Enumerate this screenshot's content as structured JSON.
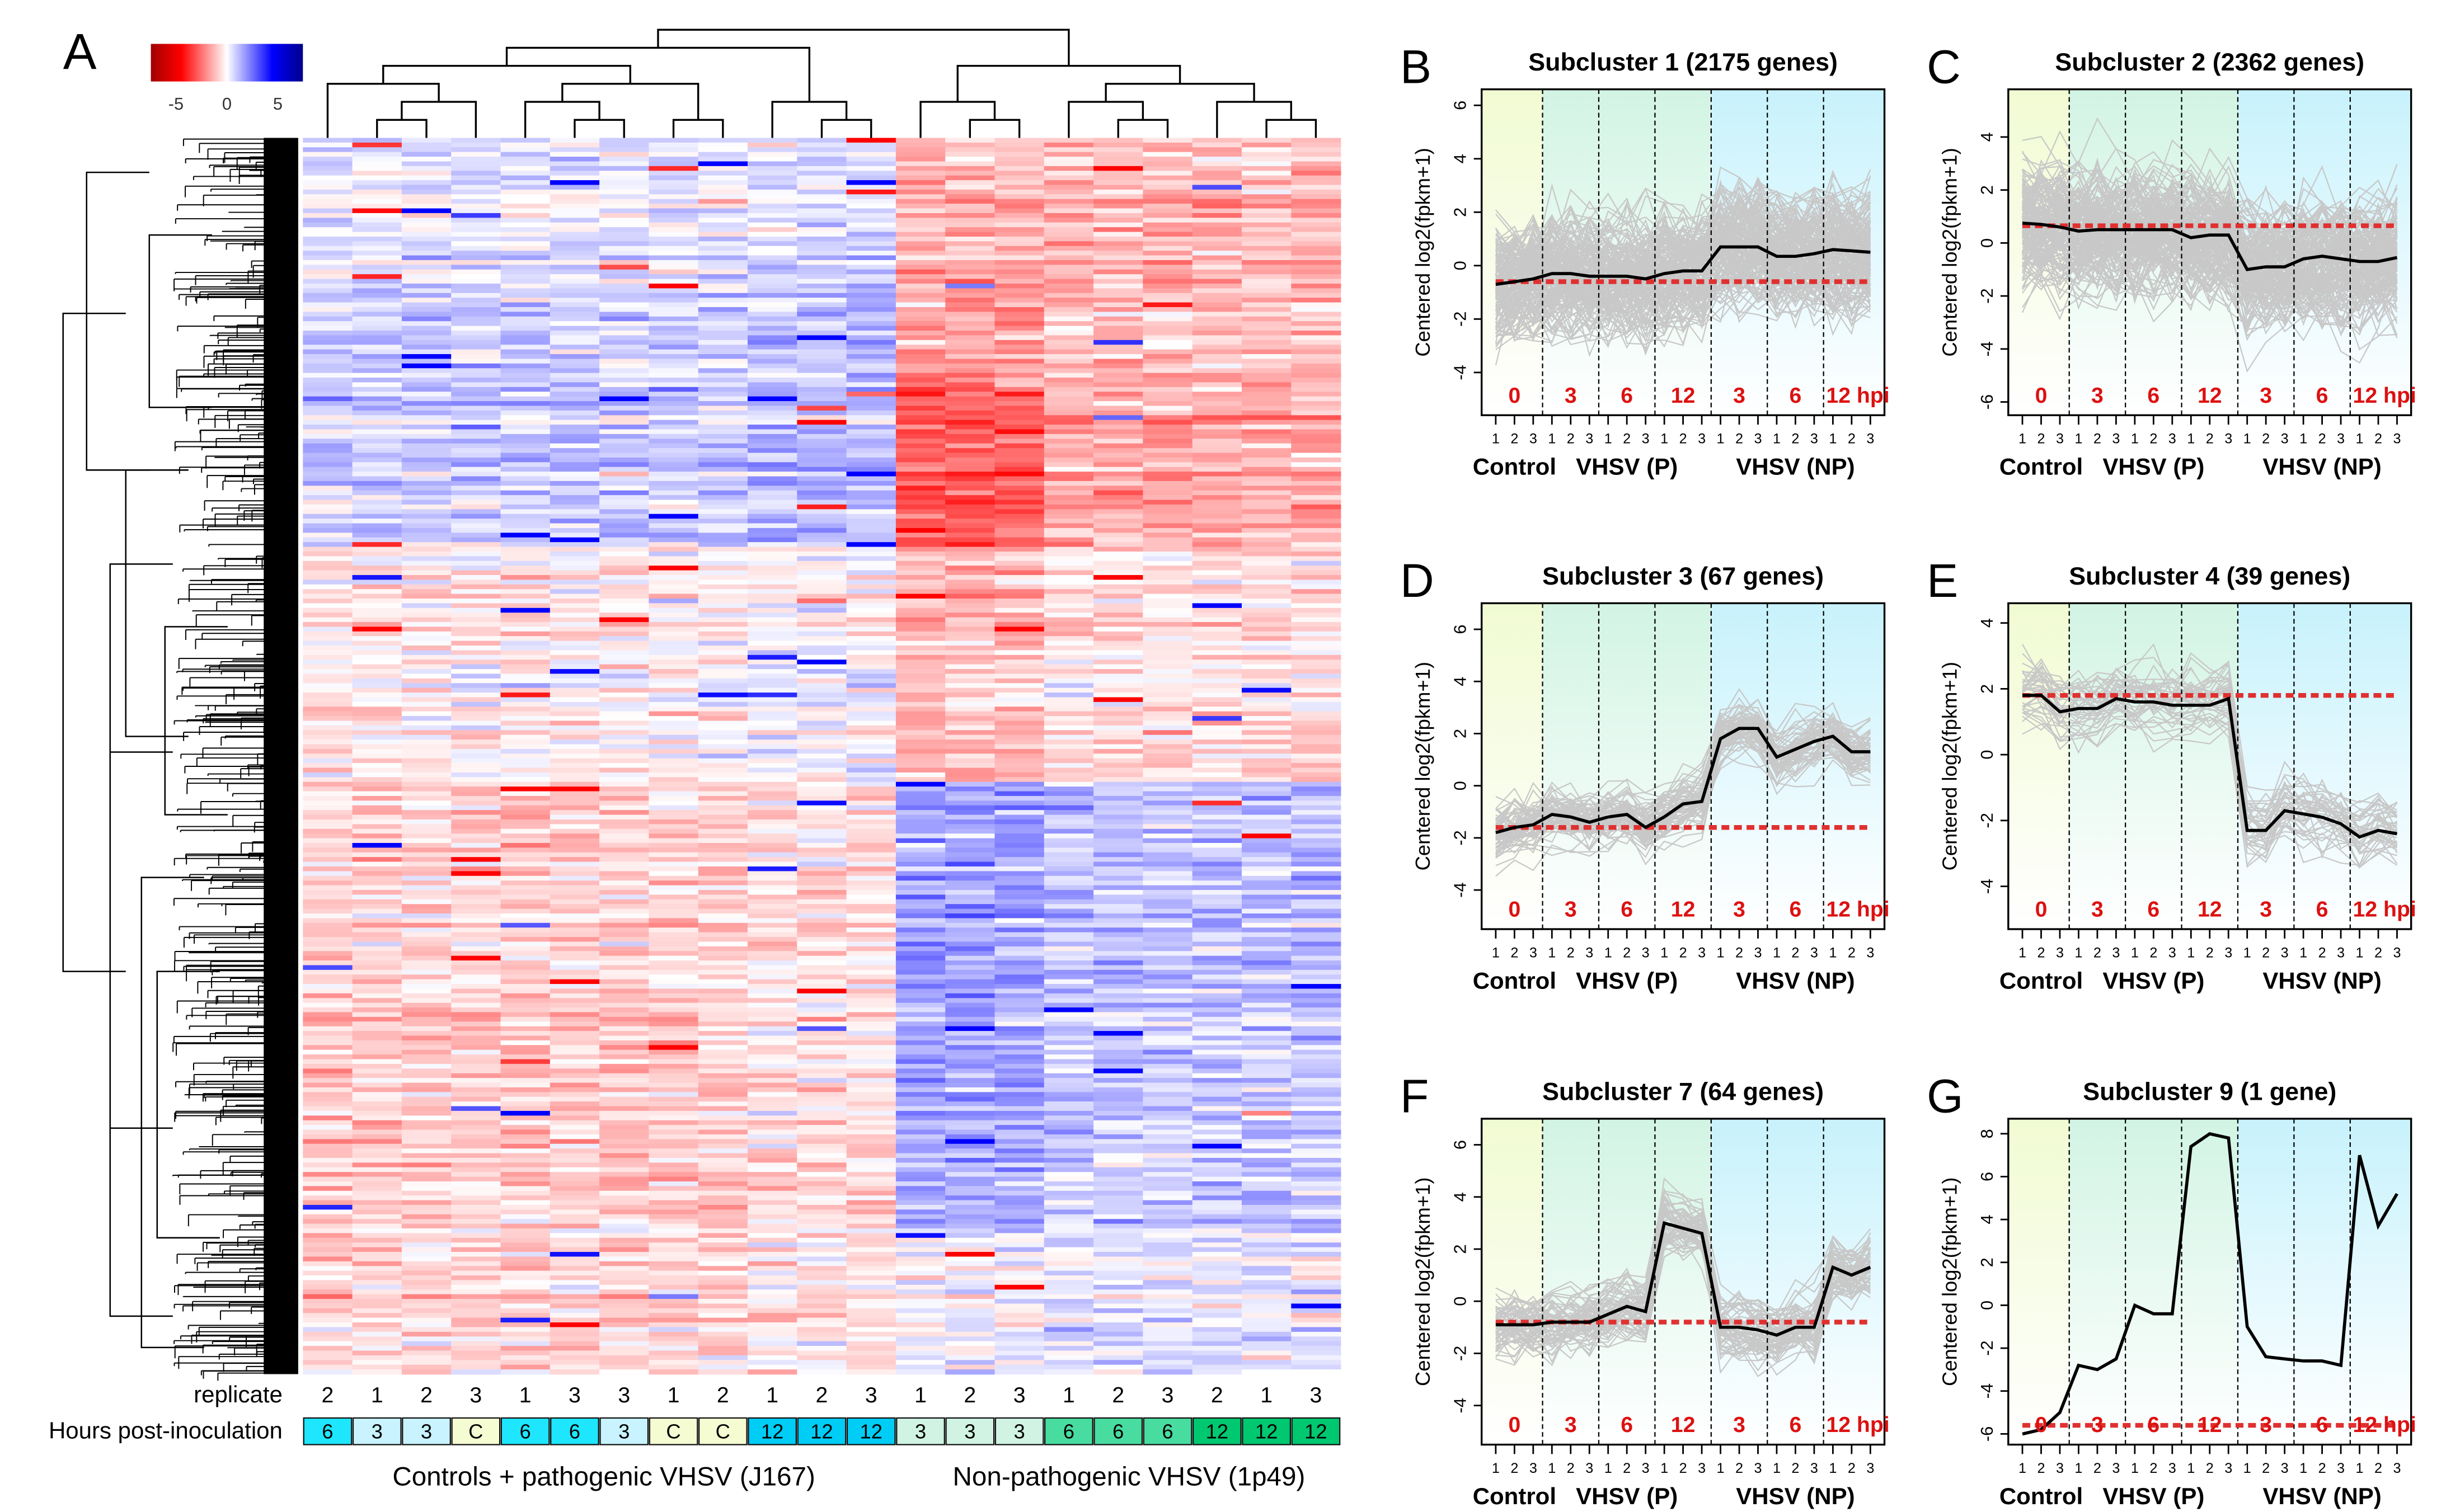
{
  "panel_letters": [
    "A",
    "B",
    "C",
    "D",
    "E",
    "F",
    "G"
  ],
  "chart_data": [
    {
      "type": "heatmap",
      "panel": "A",
      "color_scale": {
        "ticks": [
          "-5",
          "0",
          "5"
        ],
        "range": [
          -7,
          7
        ],
        "low_color": "#ff0000",
        "mid_color": "#ffffff",
        "high_color": "#0000ff"
      },
      "row_labels": {
        "replicate": "replicate",
        "hpi": "Hours post-inoculation"
      },
      "columns": {
        "replicate": [
          "2",
          "1",
          "2",
          "3",
          "1",
          "3",
          "3",
          "1",
          "2",
          "1",
          "2",
          "3",
          "1",
          "2",
          "3",
          "1",
          "2",
          "3",
          "2",
          "1",
          "3"
        ],
        "hpi": [
          "6",
          "3",
          "3",
          "C",
          "6",
          "6",
          "3",
          "C",
          "C",
          "12",
          "12",
          "12",
          "3",
          "3",
          "3",
          "6",
          "6",
          "6",
          "12",
          "12",
          "12"
        ],
        "group": [
          "P",
          "P",
          "P",
          "P",
          "P",
          "P",
          "P",
          "P",
          "P",
          "P",
          "P",
          "P",
          "NP",
          "NP",
          "NP",
          "NP",
          "NP",
          "NP",
          "NP",
          "NP",
          "NP"
        ]
      },
      "hpi_colors": {
        "C": "#f5fcd2",
        "P3": "#c8f3ff",
        "P6": "#1ee6ff",
        "P12": "#00cdf5",
        "NP3": "#d0f3e4",
        "NP6": "#48dca0",
        "NP12": "#00c870"
      },
      "group_labels": [
        "Controls + pathogenic VHSV (J167)",
        "Non-pathogenic VHSV (1p49)"
      ]
    },
    {
      "type": "line",
      "panel": "B",
      "title": "Subcluster 1 (2175 genes)",
      "ylim": [
        -5.6,
        6.6
      ],
      "yticks": [
        -4,
        -2,
        0,
        2,
        4,
        6
      ],
      "mean": [
        -0.7,
        -0.6,
        -0.5,
        -0.3,
        -0.3,
        -0.4,
        -0.4,
        -0.4,
        -0.5,
        -0.3,
        -0.2,
        -0.2,
        0.7,
        0.7,
        0.7,
        0.35,
        0.35,
        0.45,
        0.6,
        0.55,
        0.5
      ],
      "baseline": -0.6,
      "spread": 2.2,
      "n_lines": 160
    },
    {
      "type": "line",
      "panel": "C",
      "title": "Subcluster 2 (2362 genes)",
      "ylim": [
        -6.5,
        5.8
      ],
      "yticks": [
        -6,
        -4,
        -2,
        0,
        2,
        4
      ],
      "mean": [
        0.75,
        0.7,
        0.6,
        0.45,
        0.5,
        0.5,
        0.5,
        0.5,
        0.5,
        0.2,
        0.3,
        0.3,
        -1.0,
        -0.9,
        -0.9,
        -0.6,
        -0.5,
        -0.6,
        -0.7,
        -0.7,
        -0.55
      ],
      "baseline": 0.65,
      "spread": 2.2,
      "n_lines": 160
    },
    {
      "type": "line",
      "panel": "D",
      "title": "Subcluster 3 (67 genes)",
      "ylim": [
        -5.5,
        7
      ],
      "yticks": [
        -4,
        -2,
        0,
        2,
        4,
        6
      ],
      "mean": [
        -1.8,
        -1.6,
        -1.5,
        -1.1,
        -1.2,
        -1.4,
        -1.2,
        -1.1,
        -1.6,
        -1.2,
        -0.7,
        -0.6,
        1.8,
        2.2,
        2.2,
        1.1,
        1.4,
        1.7,
        1.9,
        1.3,
        1.3
      ],
      "baseline": -1.6,
      "spread": 1.1,
      "n_lines": 67
    },
    {
      "type": "line",
      "panel": "E",
      "title": "Subcluster 4 (39 genes)",
      "ylim": [
        -5.3,
        4.6
      ],
      "yticks": [
        -4,
        -2,
        0,
        2,
        4
      ],
      "mean": [
        1.8,
        1.8,
        1.3,
        1.4,
        1.4,
        1.7,
        1.6,
        1.6,
        1.5,
        1.5,
        1.5,
        1.7,
        -2.3,
        -2.3,
        -1.7,
        -1.8,
        -1.9,
        -2.1,
        -2.5,
        -2.3,
        -2.4
      ],
      "baseline": 1.8,
      "spread": 1.0,
      "n_lines": 39
    },
    {
      "type": "line",
      "panel": "F",
      "title": "Subcluster 7 (64 genes)",
      "ylim": [
        -5.5,
        7
      ],
      "yticks": [
        -4,
        -2,
        0,
        2,
        4,
        6
      ],
      "mean": [
        -0.9,
        -0.9,
        -0.9,
        -0.8,
        -0.8,
        -0.8,
        -0.5,
        -0.2,
        -0.4,
        3.0,
        2.8,
        2.6,
        -1.0,
        -1.0,
        -1.1,
        -1.3,
        -1.0,
        -1.0,
        1.3,
        1.0,
        1.3
      ],
      "baseline": -0.8,
      "spread": 1.2,
      "n_lines": 64
    },
    {
      "type": "line",
      "panel": "G",
      "title": "Subcluster 9 (1 gene)",
      "ylim": [
        -6.5,
        8.7
      ],
      "yticks": [
        -6,
        -4,
        -2,
        0,
        2,
        4,
        6,
        8
      ],
      "mean": [
        -6.0,
        -5.8,
        -5.0,
        -2.8,
        -3.0,
        -2.5,
        0.0,
        -0.4,
        -0.4,
        7.4,
        8.0,
        7.8,
        -1.0,
        -2.4,
        -2.5,
        -2.6,
        -2.6,
        -2.8,
        7.0,
        3.7,
        5.2
      ],
      "baseline": -5.6,
      "spread": 0,
      "n_lines": 0
    }
  ],
  "panel_common": {
    "ylabel": "Centered log2(fpkm+1)",
    "segment_labels": [
      "0",
      "3",
      "6",
      "12",
      "3",
      "6",
      "12 hpi"
    ],
    "replicate_ticks": [
      "1",
      "2",
      "3"
    ],
    "group_labels": [
      "Control",
      "VHSV (P)",
      "VHSV (NP)"
    ],
    "colors": {
      "mean": "#000000",
      "baseline": "#e03030",
      "gene": "#c8c8c8",
      "segment_label": "#dd1111",
      "bg_control": "#f1fbd2",
      "bg_p": "#d2f4e4",
      "bg_np": "#c8f2fc"
    }
  }
}
